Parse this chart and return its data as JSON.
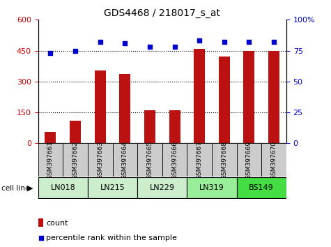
{
  "title": "GDS4468 / 218017_s_at",
  "samples": [
    "GSM397661",
    "GSM397662",
    "GSM397663",
    "GSM397664",
    "GSM397665",
    "GSM397666",
    "GSM397667",
    "GSM397668",
    "GSM397669",
    "GSM397670"
  ],
  "counts": [
    55,
    110,
    355,
    335,
    160,
    162,
    460,
    420,
    450,
    448
  ],
  "percentile_ranks": [
    73,
    75,
    82,
    81,
    78,
    78,
    83,
    82,
    82,
    82
  ],
  "cell_lines": [
    {
      "label": "LN018",
      "start": 0,
      "end": 1,
      "color": "#cceecc"
    },
    {
      "label": "LN215",
      "start": 2,
      "end": 3,
      "color": "#cceecc"
    },
    {
      "label": "LN229",
      "start": 4,
      "end": 5,
      "color": "#cceecc"
    },
    {
      "label": "LN319",
      "start": 6,
      "end": 7,
      "color": "#99ee99"
    },
    {
      "label": "BS149",
      "start": 8,
      "end": 9,
      "color": "#44dd44"
    }
  ],
  "bar_color": "#bb1111",
  "dot_color": "#0000cc",
  "left_yticks": [
    0,
    150,
    300,
    450,
    600
  ],
  "left_ylim": [
    0,
    600
  ],
  "right_yticks": [
    0,
    25,
    50,
    75,
    100
  ],
  "right_ylim": [
    0,
    100
  ],
  "left_ylabel_color": "#cc0000",
  "right_ylabel_color": "#0000cc",
  "sample_bg_color": "#cccccc",
  "cell_line_label": "cell line"
}
